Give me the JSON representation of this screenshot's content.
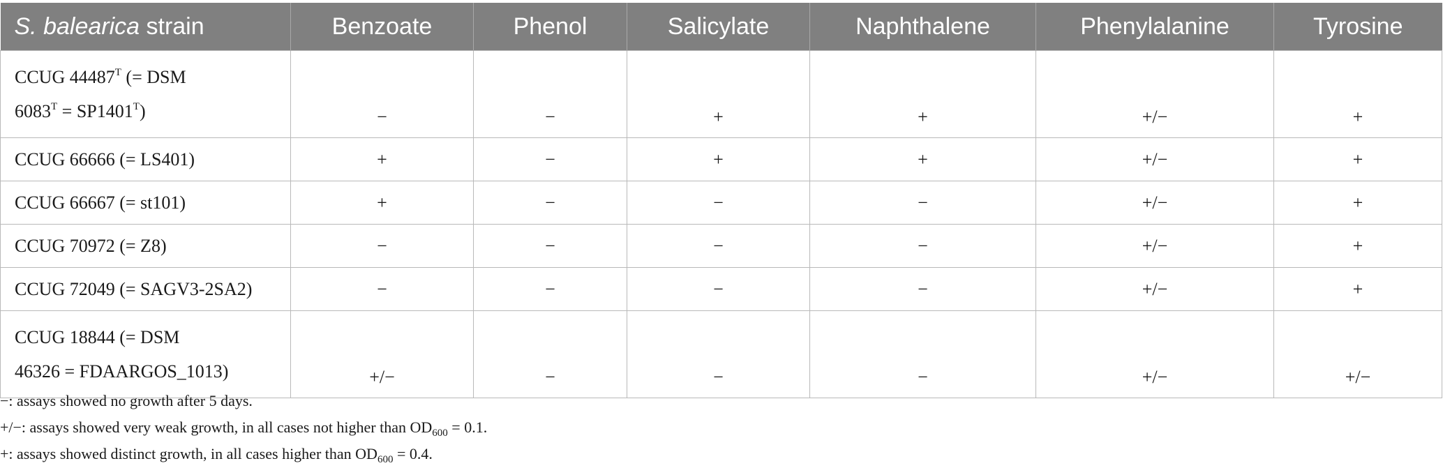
{
  "header": {
    "species": "S. balearica",
    "strain_word": "strain",
    "substrates": [
      "Benzoate",
      "Phenol",
      "Salicylate",
      "Naphthalene",
      "Phenylalanine",
      "Tyrosine"
    ]
  },
  "rows": [
    {
      "strain": {
        "a": "CCUG 44487",
        "a_sup": "T",
        "b": " (= DSM",
        "c": "6083",
        "c_sup": "T",
        "d": " = SP1401",
        "d_sup": "T",
        "e": ")"
      },
      "values": [
        "−",
        "−",
        "+",
        "+",
        "+/−",
        "+"
      ]
    },
    {
      "strain": "CCUG 66666 (= LS401)",
      "values": [
        "+",
        "−",
        "+",
        "+",
        "+/−",
        "+"
      ]
    },
    {
      "strain": "CCUG 66667 (= st101)",
      "values": [
        "+",
        "−",
        "−",
        "−",
        "+/−",
        "+"
      ]
    },
    {
      "strain": "CCUG 70972 (= Z8)",
      "values": [
        "−",
        "−",
        "−",
        "−",
        "+/−",
        "+"
      ]
    },
    {
      "strain": "CCUG 72049 (= SAGV3-2SA2)",
      "values": [
        "−",
        "−",
        "−",
        "−",
        "+/−",
        "+"
      ]
    },
    {
      "strain": {
        "line1": "CCUG 18844 (= DSM",
        "line2": "46326 = FDAARGOS_1013)"
      },
      "values": [
        "+/−",
        "−",
        "−",
        "−",
        "+/−",
        "+/−"
      ]
    }
  ],
  "notes": {
    "minus": "−: assays showed no growth after 5 days.",
    "weak_prefix": "+/−: assays showed very weak growth, in all cases not higher than OD",
    "weak_sub": "600",
    "weak_suffix": " = 0.1.",
    "plus_prefix": "+: assays showed distinct growth, in all cases higher than OD",
    "plus_sub": "600",
    "plus_suffix": " = 0.4."
  }
}
